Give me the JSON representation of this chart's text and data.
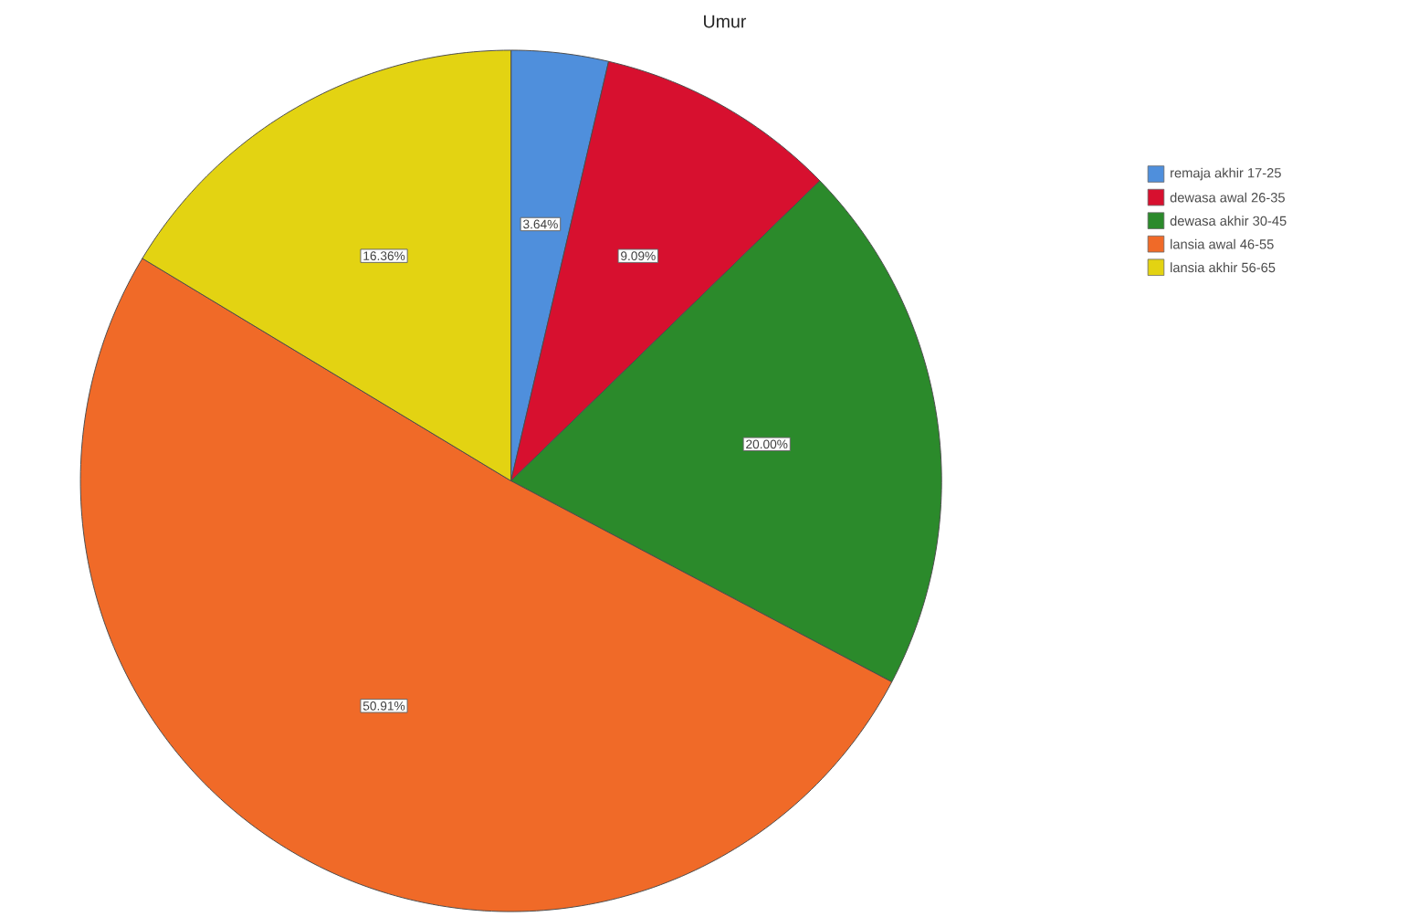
{
  "chart_data": {
    "type": "pie",
    "title": "Umur",
    "categories": [
      "remaja akhir 17-25",
      "dewasa awal 26-35",
      "dewasa akhir 30-45",
      "lansia awal 46-55",
      "lansia akhir 56-65"
    ],
    "values": [
      3.64,
      9.09,
      20.0,
      50.91,
      16.36
    ],
    "colors": [
      "#4f8fdc",
      "#d7102f",
      "#2b8a2b",
      "#f06a28",
      "#e3d312"
    ],
    "value_labels": [
      "3.64%",
      "9.09%",
      "20.00%",
      "50.91%",
      "16.36%"
    ],
    "legend": "top right"
  }
}
